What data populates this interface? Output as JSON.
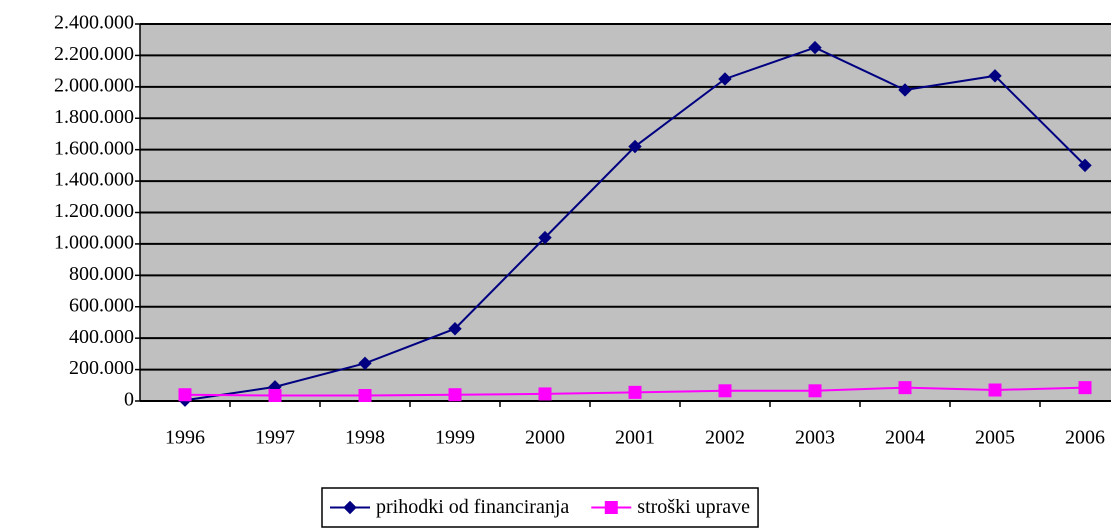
{
  "chart_data": {
    "type": "line",
    "categories": [
      "1996",
      "1997",
      "1998",
      "1999",
      "2000",
      "2001",
      "2002",
      "2003",
      "2004",
      "2005",
      "2006"
    ],
    "series": [
      {
        "name": "prihodki od financiranja",
        "color": "#000080",
        "marker": "diamond",
        "values": [
          5000,
          90000,
          240000,
          460000,
          1040000,
          1620000,
          2050000,
          2250000,
          1980000,
          2070000,
          1500000
        ]
      },
      {
        "name": "stroški uprave",
        "color": "#ff00ff",
        "marker": "square",
        "values": [
          40000,
          35000,
          35000,
          40000,
          45000,
          55000,
          65000,
          65000,
          85000,
          70000,
          85000
        ]
      }
    ],
    "ylim": [
      0,
      2400000
    ],
    "yticks": [
      0,
      {
        "value": 200000,
        "label": "200.000"
      },
      {
        "value": 400000,
        "label": "400.000"
      },
      {
        "value": 600000,
        "label": "600.000"
      },
      {
        "value": 800000,
        "label": "800.000"
      },
      {
        "value": 1000000,
        "label": "1.000.000"
      },
      {
        "value": 1200000,
        "label": "1.200.000"
      },
      {
        "value": 1400000,
        "label": "1.400.000"
      },
      {
        "value": 1600000,
        "label": "1.600.000"
      },
      {
        "value": 1800000,
        "label": "1.800.000"
      },
      {
        "value": 2000000,
        "label": "2.000.000"
      },
      {
        "value": 2200000,
        "label": "2.200.000"
      },
      {
        "value": 2400000,
        "label": "2.400.000"
      }
    ],
    "grid": true,
    "legend": "bottom",
    "background": "#c0c0c0"
  }
}
